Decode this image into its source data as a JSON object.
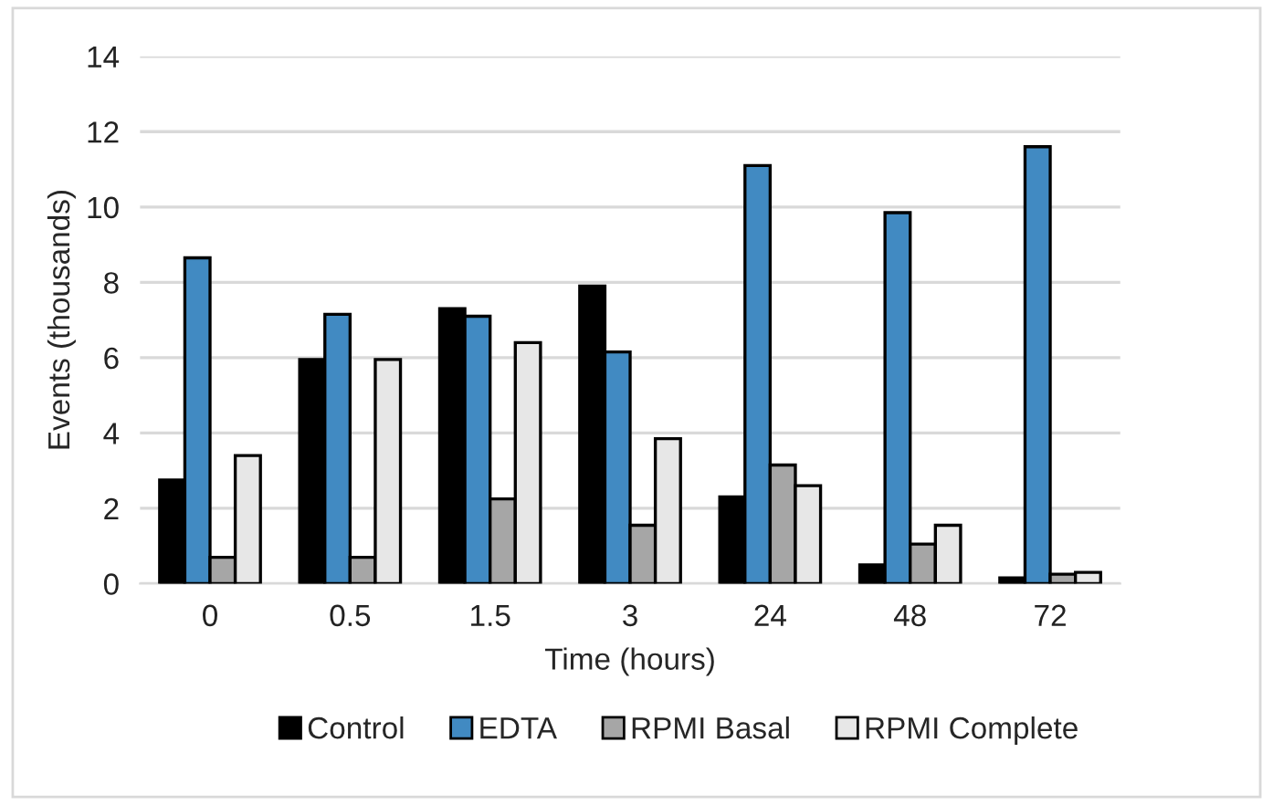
{
  "chart_data": {
    "type": "bar",
    "xlabel": "Time (hours)",
    "ylabel": "Events (thousands)",
    "categories": [
      "0",
      "0.5",
      "1.5",
      "3",
      "24",
      "48",
      "72"
    ],
    "series": [
      {
        "name": "Control",
        "color": "#000000",
        "values": [
          2.75,
          5.95,
          7.3,
          7.9,
          2.3,
          0.5,
          0.15
        ]
      },
      {
        "name": "EDTA",
        "color": "#418ac2",
        "values": [
          8.65,
          7.15,
          7.1,
          6.15,
          11.1,
          9.85,
          11.6
        ]
      },
      {
        "name": "RPMI Basal",
        "color": "#a6a6a6",
        "values": [
          0.7,
          0.7,
          2.25,
          1.55,
          3.15,
          1.05,
          0.25
        ]
      },
      {
        "name": "RPMI Complete",
        "color": "#e7e7e7",
        "values": [
          3.4,
          5.95,
          6.4,
          3.85,
          2.6,
          1.55,
          0.3
        ]
      }
    ],
    "ylim": [
      0,
      14
    ],
    "yticks": [
      0,
      2,
      4,
      6,
      8,
      10,
      12,
      14
    ],
    "grid": "y",
    "legend": "bottom"
  }
}
